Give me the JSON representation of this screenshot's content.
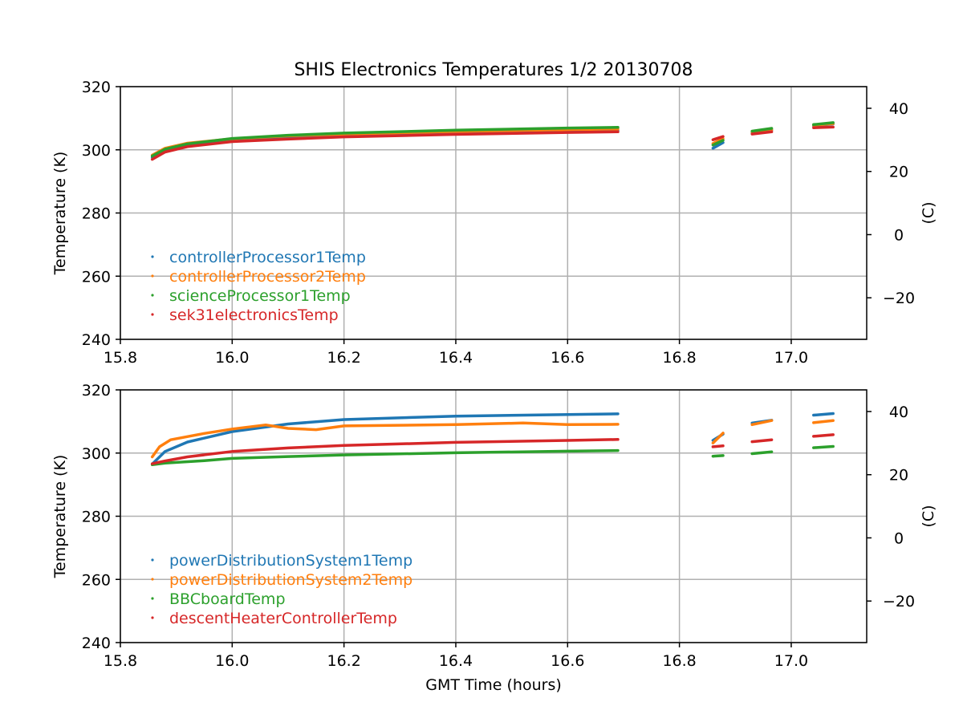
{
  "chart_data": {
    "type": "line",
    "title": "SHIS Electronics Temperatures 1/2 20130708",
    "xlabel": "GMT Time (hours)",
    "xlim": [
      15.8,
      17.135
    ],
    "xticks": [
      15.8,
      16.0,
      16.2,
      16.4,
      16.6,
      16.8,
      17.0
    ],
    "xtick_labels": [
      "15.8",
      "16.0",
      "16.2",
      "16.4",
      "16.6",
      "16.8",
      "17.0"
    ],
    "panels": [
      {
        "id": "top",
        "ylabel": "Temperature (K)",
        "ylabel_right": "(C)",
        "ylim": [
          240,
          320
        ],
        "yticks": [
          240,
          260,
          280,
          300,
          320
        ],
        "yticks_right": [
          -20,
          0,
          20,
          40
        ],
        "legend_position": "lower-left",
        "series": [
          {
            "name": "controllerProcessor1Temp",
            "color": "#1f77b4",
            "segments": [
              [
                [
                  15.857,
                  297.6
                ],
                [
                  15.88,
                  300.0
                ],
                [
                  15.92,
                  301.8
                ],
                [
                  16.0,
                  303.2
                ],
                [
                  16.1,
                  304.0
                ],
                [
                  16.2,
                  304.5
                ],
                [
                  16.4,
                  305.3
                ],
                [
                  16.6,
                  305.9
                ],
                [
                  16.69,
                  306.1
                ]
              ],
              [
                [
                  16.86,
                  300.5
                ],
                [
                  16.878,
                  302.3
                ]
              ],
              [
                [
                  16.93,
                  305.3
                ],
                [
                  16.965,
                  306.2
                ]
              ],
              [
                [
                  17.04,
                  307.6
                ],
                [
                  17.075,
                  308.2
                ]
              ]
            ]
          },
          {
            "name": "controllerProcessor2Temp",
            "color": "#ff7f0e",
            "segments": [
              [
                [
                  15.857,
                  298.3
                ],
                [
                  15.88,
                  300.5
                ],
                [
                  15.92,
                  302.1
                ],
                [
                  16.0,
                  303.5
                ],
                [
                  16.1,
                  304.4
                ],
                [
                  16.2,
                  305.0
                ],
                [
                  16.4,
                  305.8
                ],
                [
                  16.6,
                  306.4
                ],
                [
                  16.69,
                  306.6
                ]
              ],
              [
                [
                  16.86,
                  302.0
                ],
                [
                  16.878,
                  303.5
                ]
              ],
              [
                [
                  16.93,
                  305.6
                ],
                [
                  16.965,
                  306.4
                ]
              ],
              [
                [
                  17.04,
                  307.8
                ],
                [
                  17.075,
                  308.3
                ]
              ]
            ]
          },
          {
            "name": "scienceProcessor1Temp",
            "color": "#2ca02c",
            "segments": [
              [
                [
                  15.857,
                  298.0
                ],
                [
                  15.88,
                  300.2
                ],
                [
                  15.92,
                  301.9
                ],
                [
                  16.0,
                  303.6
                ],
                [
                  16.1,
                  304.6
                ],
                [
                  16.2,
                  305.3
                ],
                [
                  16.4,
                  306.2
                ],
                [
                  16.6,
                  306.9
                ],
                [
                  16.69,
                  307.1
                ]
              ],
              [
                [
                  16.86,
                  301.5
                ],
                [
                  16.878,
                  303.0
                ]
              ],
              [
                [
                  16.93,
                  305.9
                ],
                [
                  16.965,
                  306.8
                ]
              ],
              [
                [
                  17.04,
                  308.0
                ],
                [
                  17.075,
                  308.6
                ]
              ]
            ]
          },
          {
            "name": "sek31electronicsTemp",
            "color": "#d62728",
            "segments": [
              [
                [
                  15.857,
                  297.0
                ],
                [
                  15.88,
                  299.3
                ],
                [
                  15.92,
                  301.0
                ],
                [
                  16.0,
                  302.6
                ],
                [
                  16.1,
                  303.4
                ],
                [
                  16.2,
                  304.1
                ],
                [
                  16.4,
                  304.9
                ],
                [
                  16.6,
                  305.5
                ],
                [
                  16.69,
                  305.7
                ]
              ],
              [
                [
                  16.86,
                  303.2
                ],
                [
                  16.878,
                  304.2
                ]
              ],
              [
                [
                  16.93,
                  305.0
                ],
                [
                  16.965,
                  305.7
                ]
              ],
              [
                [
                  17.04,
                  307.0
                ],
                [
                  17.075,
                  307.2
                ]
              ]
            ]
          }
        ]
      },
      {
        "id": "bottom",
        "ylabel": "Temperature (K)",
        "ylabel_right": "(C)",
        "ylim": [
          240,
          320
        ],
        "yticks": [
          240,
          260,
          280,
          300,
          320
        ],
        "yticks_right": [
          -20,
          0,
          20,
          40
        ],
        "legend_position": "lower-left",
        "series": [
          {
            "name": "powerDistributionSystem1Temp",
            "color": "#1f77b4",
            "segments": [
              [
                [
                  15.857,
                  296.5
                ],
                [
                  15.88,
                  300.5
                ],
                [
                  15.92,
                  303.5
                ],
                [
                  16.0,
                  306.8
                ],
                [
                  16.1,
                  309.2
                ],
                [
                  16.2,
                  310.6
                ],
                [
                  16.4,
                  311.7
                ],
                [
                  16.6,
                  312.2
                ],
                [
                  16.69,
                  312.4
                ]
              ],
              [
                [
                  16.86,
                  304.0
                ],
                [
                  16.878,
                  306.0
                ]
              ],
              [
                [
                  16.93,
                  309.5
                ],
                [
                  16.965,
                  310.4
                ]
              ],
              [
                [
                  17.04,
                  312.0
                ],
                [
                  17.075,
                  312.5
                ]
              ]
            ]
          },
          {
            "name": "powerDistributionSystem2Temp",
            "color": "#ff7f0e",
            "segments": [
              [
                [
                  15.857,
                  298.8
                ],
                [
                  15.87,
                  302.0
                ],
                [
                  15.89,
                  304.2
                ],
                [
                  15.95,
                  306.2
                ],
                [
                  16.0,
                  307.6
                ],
                [
                  16.06,
                  308.9
                ],
                [
                  16.1,
                  307.8
                ],
                [
                  16.15,
                  307.4
                ],
                [
                  16.2,
                  308.6
                ],
                [
                  16.4,
                  309.0
                ],
                [
                  16.52,
                  309.5
                ],
                [
                  16.6,
                  309.0
                ],
                [
                  16.69,
                  309.1
                ]
              ],
              [
                [
                  16.86,
                  303.2
                ],
                [
                  16.878,
                  306.3
                ]
              ],
              [
                [
                  16.93,
                  309.0
                ],
                [
                  16.965,
                  310.3
                ]
              ],
              [
                [
                  17.04,
                  309.6
                ],
                [
                  17.075,
                  310.3
                ]
              ]
            ]
          },
          {
            "name": "BBCboardTemp",
            "color": "#2ca02c",
            "segments": [
              [
                [
                  15.857,
                  296.3
                ],
                [
                  15.88,
                  296.8
                ],
                [
                  15.95,
                  297.6
                ],
                [
                  16.0,
                  298.3
                ],
                [
                  16.1,
                  298.9
                ],
                [
                  16.2,
                  299.4
                ],
                [
                  16.4,
                  300.1
                ],
                [
                  16.6,
                  300.6
                ],
                [
                  16.69,
                  300.8
                ]
              ],
              [
                [
                  16.86,
                  299.0
                ],
                [
                  16.878,
                  299.2
                ]
              ],
              [
                [
                  16.93,
                  299.8
                ],
                [
                  16.965,
                  300.4
                ]
              ],
              [
                [
                  17.04,
                  301.7
                ],
                [
                  17.075,
                  302.1
                ]
              ]
            ]
          },
          {
            "name": "descentHeaterControllerTemp",
            "color": "#d62728",
            "segments": [
              [
                [
                  15.857,
                  296.6
                ],
                [
                  15.88,
                  297.5
                ],
                [
                  15.92,
                  298.8
                ],
                [
                  16.0,
                  300.5
                ],
                [
                  16.1,
                  301.6
                ],
                [
                  16.2,
                  302.4
                ],
                [
                  16.4,
                  303.4
                ],
                [
                  16.6,
                  304.0
                ],
                [
                  16.69,
                  304.3
                ]
              ],
              [
                [
                  16.86,
                  302.0
                ],
                [
                  16.878,
                  302.3
                ]
              ],
              [
                [
                  16.93,
                  303.6
                ],
                [
                  16.965,
                  304.2
                ]
              ],
              [
                [
                  17.04,
                  305.3
                ],
                [
                  17.075,
                  305.8
                ]
              ]
            ]
          }
        ]
      }
    ]
  }
}
